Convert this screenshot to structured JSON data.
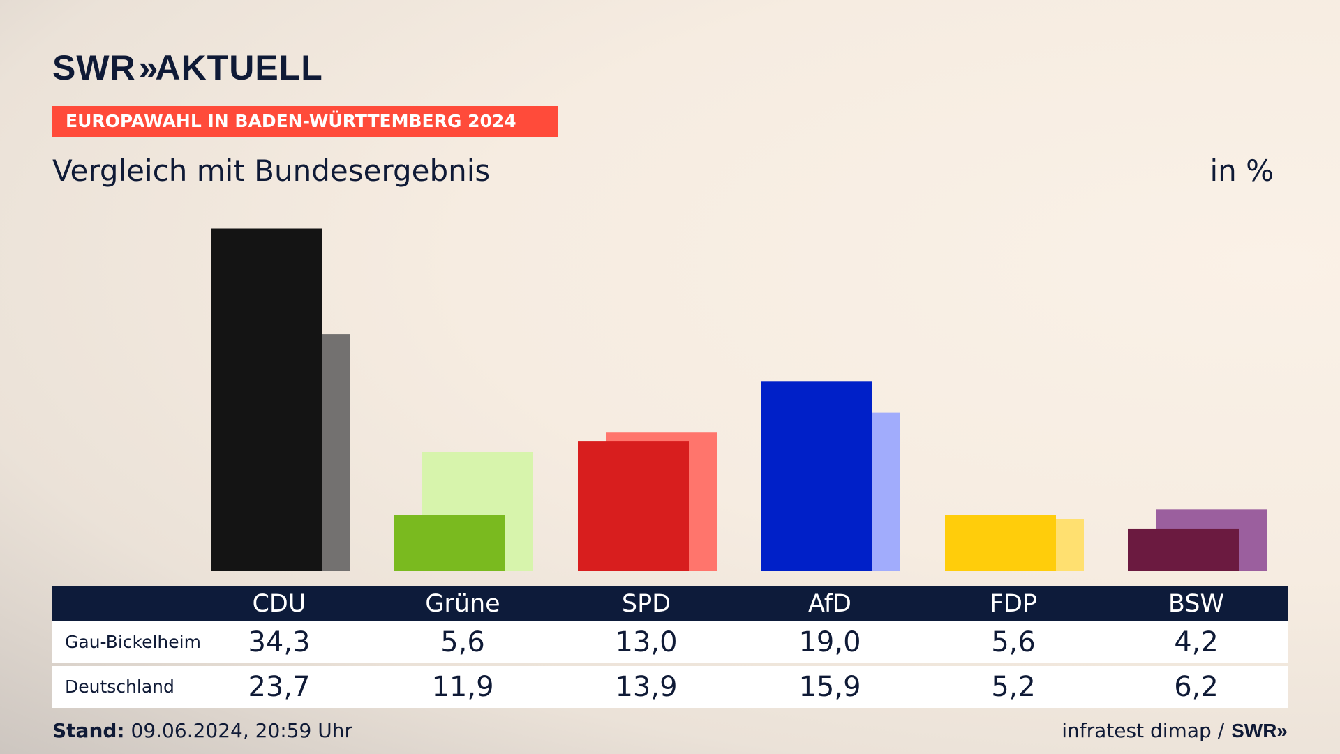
{
  "brand": {
    "swr": "SWR",
    "chevrons": "»",
    "aktuell": "AKTUELL"
  },
  "tag": "EUROPAWAHL IN BADEN-WÜRTTEMBERG 2024",
  "subtitle": "Vergleich mit Bundesergebnis",
  "unit": "in %",
  "footer": {
    "stand_label": "Stand:",
    "stand_value": "09.06.2024, 20:59 Uhr",
    "source": "infratest dimap /",
    "source_logo": "SWR»"
  },
  "chart_data": {
    "type": "bar",
    "categories": [
      "CDU",
      "Grüne",
      "SPD",
      "AfD",
      "FDP",
      "BSW"
    ],
    "series": [
      {
        "name": "Gau-Bickelheim",
        "values": [
          34.3,
          5.6,
          13.0,
          19.0,
          5.6,
          4.2
        ],
        "colors": [
          "#141414",
          "#7aba1f",
          "#d81e1e",
          "#0020c8",
          "#ffcd0b",
          "#6b1a40"
        ]
      },
      {
        "name": "Deutschland",
        "values": [
          23.7,
          11.9,
          13.9,
          15.9,
          5.2,
          6.2
        ],
        "colors": [
          "#737170",
          "#d7f4ac",
          "#ff756c",
          "#a1acfc",
          "#ffe070",
          "#9b5f9e"
        ]
      }
    ],
    "table": {
      "header": [
        "CDU",
        "Grüne",
        "SPD",
        "AfD",
        "FDP",
        "BSW"
      ],
      "rows": [
        {
          "label": "Gau-Bickelheim",
          "values": [
            "34,3",
            "5,6",
            "13,0",
            "19,0",
            "5,6",
            "4,2"
          ]
        },
        {
          "label": "Deutschland",
          "values": [
            "23,7",
            "11,9",
            "13,9",
            "15,9",
            "5,2",
            "6,2"
          ]
        }
      ]
    }
  }
}
